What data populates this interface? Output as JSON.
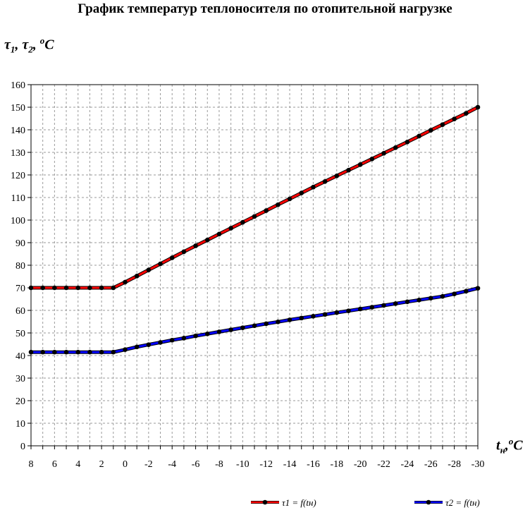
{
  "chart_data": {
    "type": "line",
    "title": "График температур теплоносителя по отопительной нагрузке",
    "ylabel": "τ1, τ2, ºC",
    "xlabel": "tн,ºC",
    "x": [
      8,
      7,
      6,
      5,
      4,
      3,
      2,
      1,
      0,
      -1,
      -2,
      -3,
      -4,
      -5,
      -6,
      -7,
      -8,
      -9,
      -10,
      -11,
      -12,
      -13,
      -14,
      -15,
      -16,
      -17,
      -18,
      -19,
      -20,
      -21,
      -22,
      -23,
      -24,
      -25,
      -26,
      -27,
      -28,
      -29,
      -30
    ],
    "xticks": [
      8,
      6,
      4,
      2,
      0,
      -2,
      -4,
      -6,
      -8,
      -10,
      -12,
      -14,
      -16,
      -18,
      -20,
      -22,
      -24,
      -26,
      -28,
      -30
    ],
    "xlim": [
      8,
      -30
    ],
    "ylim": [
      0,
      160
    ],
    "yticks": [
      0,
      10,
      20,
      30,
      40,
      50,
      60,
      70,
      80,
      90,
      100,
      110,
      120,
      130,
      140,
      150,
      160
    ],
    "grid": true,
    "legend": "bottom",
    "series": [
      {
        "name": "τ1 = f(tн)",
        "color": "#ff0000",
        "values": [
          70,
          70,
          70,
          70,
          70,
          70,
          70,
          70,
          72.5,
          75.2,
          77.9,
          80.6,
          83.3,
          86.0,
          88.6,
          91.2,
          93.8,
          96.4,
          99.0,
          101.6,
          104.2,
          106.8,
          109.4,
          112.0,
          114.6,
          117.1,
          119.6,
          122.1,
          124.6,
          127.1,
          129.6,
          132.1,
          134.6,
          137.2,
          139.8,
          142.3,
          144.8,
          147.3,
          150
        ]
      },
      {
        "name": "τ2 = f(tн)",
        "color": "#0000ff",
        "values": [
          41.5,
          41.5,
          41.5,
          41.5,
          41.5,
          41.5,
          41.5,
          41.5,
          42.6,
          43.8,
          44.8,
          45.8,
          46.8,
          47.7,
          48.7,
          49.6,
          50.5,
          51.4,
          52.3,
          53.2,
          54.1,
          54.9,
          55.8,
          56.6,
          57.4,
          58.2,
          59.0,
          59.8,
          60.6,
          61.4,
          62.2,
          63.0,
          63.8,
          64.6,
          65.4,
          66.2,
          67.3,
          68.5,
          69.8
        ]
      }
    ]
  }
}
